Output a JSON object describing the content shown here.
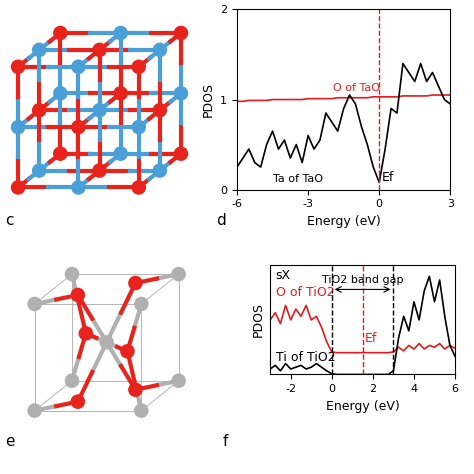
{
  "chart_data": [
    {
      "type": "line",
      "xlabel": "Energy (eV)",
      "ylabel": "PDOS",
      "x": [
        -6,
        -5.75,
        -5.5,
        -5.25,
        -5,
        -4.75,
        -4.5,
        -4.25,
        -4,
        -3.75,
        -3.5,
        -3.25,
        -3,
        -2.75,
        -2.5,
        -2.25,
        -2,
        -1.75,
        -1.5,
        -1.25,
        -1,
        -0.75,
        -0.5,
        -0.25,
        0,
        0.25,
        0.5,
        0.75,
        1,
        1.25,
        1.5,
        1.75,
        2,
        2.25,
        2.5,
        2.75,
        3
      ],
      "series": [
        {
          "name": "O of TaO",
          "color": "#e41a1c",
          "values": [
            0.98,
            0.98,
            0.99,
            0.99,
            0.99,
            0.99,
            1.0,
            1.0,
            1.0,
            1.0,
            1.0,
            1.0,
            1.01,
            1.01,
            1.01,
            1.01,
            1.01,
            1.02,
            1.02,
            1.02,
            1.02,
            1.02,
            1.02,
            1.03,
            1.03,
            1.03,
            1.03,
            1.03,
            1.04,
            1.04,
            1.04,
            1.04,
            1.04,
            1.05,
            1.05,
            1.05,
            1.05
          ]
        },
        {
          "name": "Ta of TaO",
          "color": "#000000",
          "values": [
            0.25,
            0.35,
            0.45,
            0.3,
            0.25,
            0.5,
            0.65,
            0.45,
            0.55,
            0.35,
            0.5,
            0.3,
            0.6,
            0.45,
            0.55,
            0.85,
            0.75,
            0.65,
            0.9,
            1.05,
            0.95,
            0.7,
            0.5,
            0.25,
            0.08,
            0.45,
            0.9,
            0.85,
            1.4,
            1.3,
            1.2,
            1.4,
            1.2,
            1.3,
            1.15,
            1.0,
            0.95
          ]
        }
      ],
      "xlim": [
        -6,
        3
      ],
      "xticks": [
        -6,
        -3,
        0,
        3
      ],
      "ylim": [
        0,
        2
      ],
      "yticks": [
        0,
        1,
        2
      ],
      "reference_lines": [
        {
          "x": 0,
          "label": "Ef",
          "color": "#e41a1c",
          "line_style": "dashed"
        }
      ]
    },
    {
      "type": "line",
      "title": "sX",
      "xlabel": "Energy (eV)",
      "ylabel": "PDOS",
      "x": [
        -3,
        -2.75,
        -2.5,
        -2.25,
        -2,
        -1.75,
        -1.5,
        -1.25,
        -1,
        -0.75,
        -0.5,
        -0.25,
        0,
        0.25,
        0.5,
        0.75,
        1,
        1.25,
        1.5,
        1.75,
        2,
        2.25,
        2.5,
        2.75,
        3,
        3.25,
        3.5,
        3.75,
        4,
        4.25,
        4.5,
        4.75,
        5,
        5.25,
        5.5,
        5.75,
        6
      ],
      "series": [
        {
          "name": "O of TiO2",
          "color": "#e41a1c",
          "values": [
            1.5,
            1.7,
            1.4,
            1.9,
            1.5,
            1.8,
            1.6,
            1.9,
            1.5,
            1.6,
            1.3,
            0.9,
            0.62,
            0.6,
            0.6,
            0.6,
            0.6,
            0.6,
            0.6,
            0.6,
            0.6,
            0.6,
            0.6,
            0.6,
            0.62,
            0.75,
            0.65,
            0.8,
            0.7,
            0.85,
            0.7,
            0.8,
            0.75,
            0.85,
            0.7,
            0.8,
            0.72
          ]
        },
        {
          "name": "Ti of TiO2",
          "color": "#000000",
          "values": [
            0.15,
            0.25,
            0.1,
            0.3,
            0.15,
            0.2,
            0.25,
            0.15,
            0.2,
            0.3,
            0.2,
            0.1,
            0.02,
            0,
            0,
            0,
            0,
            0,
            0,
            0,
            0,
            0,
            0,
            0,
            0.1,
            1.0,
            1.6,
            1.2,
            2.0,
            1.5,
            2.3,
            2.7,
            2.0,
            2.6,
            1.6,
            0.8,
            0.5
          ]
        }
      ],
      "xlim": [
        -3,
        6
      ],
      "xticks": [
        -2,
        0,
        2,
        4,
        6
      ],
      "ylim": [
        0,
        3
      ],
      "tick_labels": "x",
      "reference_lines": [
        {
          "x": 0,
          "color": "#000000",
          "line_style": "dashed"
        },
        {
          "x": 3,
          "color": "#000000",
          "line_style": "dashed"
        },
        {
          "x": 1.5,
          "label": "Ef",
          "color": "#e41a1c",
          "line_style": "dashed"
        }
      ],
      "band_gap": {
        "label": "TiO2 band gap",
        "range": [
          0,
          3
        ]
      }
    }
  ],
  "panel_labels": [
    "c",
    "d",
    "e",
    "f"
  ]
}
